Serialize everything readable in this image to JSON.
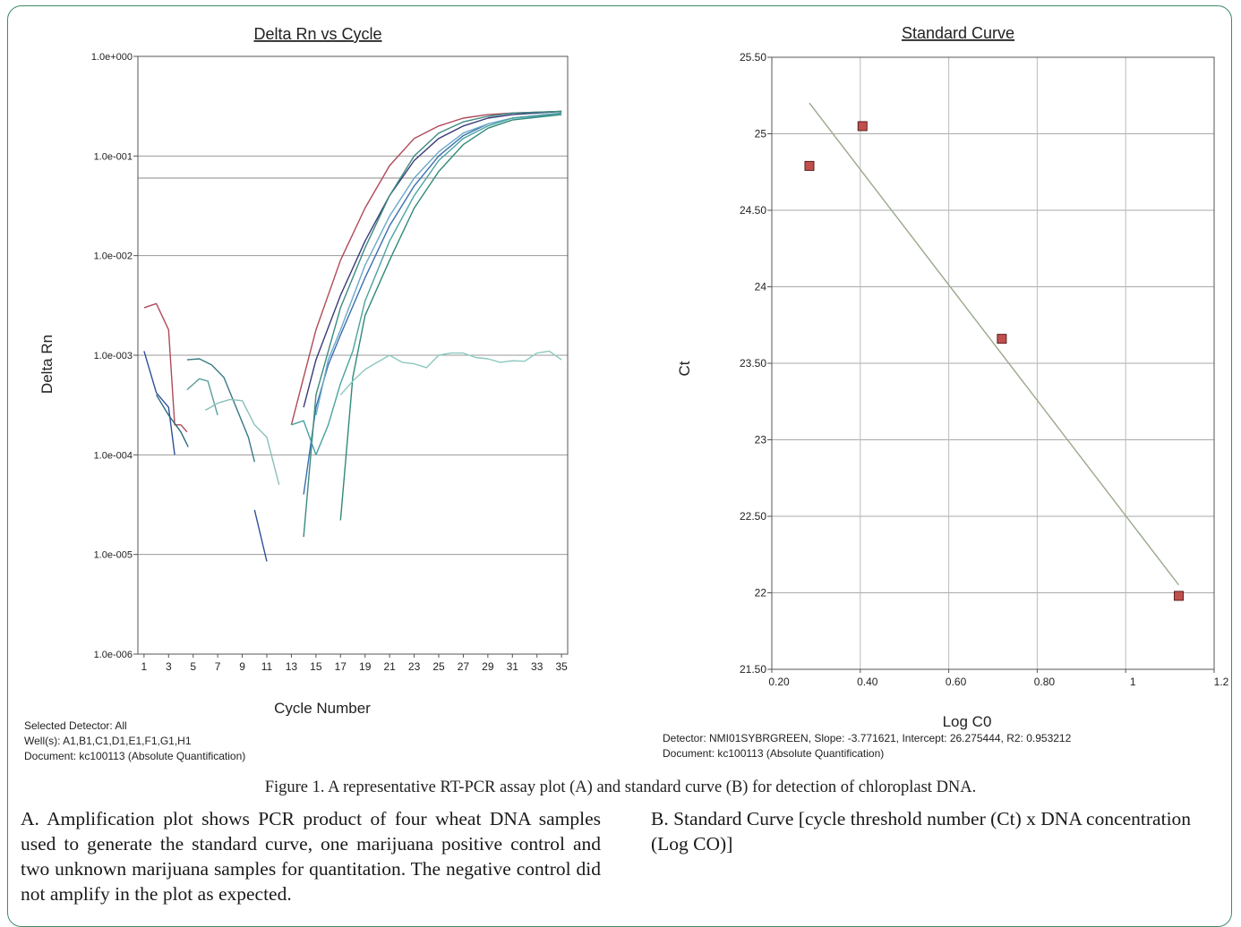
{
  "chart_data": [
    {
      "type": "line",
      "title": "Delta Rn vs Cycle",
      "xlabel": "Cycle Number",
      "ylabel": "Delta Rn",
      "yscale": "log",
      "ylim": [
        1e-06,
        1
      ],
      "xlim": [
        0.5,
        35.5
      ],
      "grid": "horizontal",
      "x_ticks": [
        "1",
        "3",
        "5",
        "7",
        "9",
        "11",
        "13",
        "15",
        "17",
        "19",
        "21",
        "23",
        "25",
        "27",
        "29",
        "31",
        "33",
        "35"
      ],
      "y_ticks": [
        "1.0e-006",
        "1.0e-005",
        "1.0e-004",
        "1.0e-003",
        "1.0e-002",
        "1.0e-001",
        "1.0e+000"
      ],
      "threshold": 0.06,
      "series": [
        {
          "color": "#b04a5a",
          "points": [
            [
              1,
              0.003
            ],
            [
              2,
              0.0033
            ],
            [
              3,
              0.0018
            ],
            [
              3.5,
              0.0002
            ],
            [
              4,
              0.0002
            ],
            [
              4.5,
              0.00017
            ]
          ]
        },
        {
          "color": "#2f4f9a",
          "points": [
            [
              1,
              0.0011
            ],
            [
              2,
              0.00042
            ],
            [
              3,
              0.0003
            ],
            [
              3.5,
              0.0001
            ]
          ]
        },
        {
          "color": "#2a6a7a",
          "points": [
            [
              2,
              0.0004
            ],
            [
              3,
              0.00025
            ],
            [
              4,
              0.00017
            ],
            [
              4.6,
              0.00012
            ]
          ]
        },
        {
          "color": "#3a7a86",
          "points": [
            [
              4.5,
              0.0009
            ],
            [
              5.5,
              0.00092
            ],
            [
              6.5,
              0.0008
            ],
            [
              7.5,
              0.0006
            ],
            [
              8.5,
              0.0003
            ],
            [
              9.5,
              0.00015
            ],
            [
              10,
              8.5e-05
            ]
          ]
        },
        {
          "color": "#5aa09a",
          "points": [
            [
              4.5,
              0.00045
            ],
            [
              5.5,
              0.00058
            ],
            [
              6.2,
              0.00055
            ],
            [
              7,
              0.00025
            ]
          ]
        },
        {
          "color": "#2f4f9a",
          "points": [
            [
              10,
              2.8e-05
            ],
            [
              11,
              8.5e-06
            ]
          ]
        },
        {
          "color": "#8ac0b8",
          "points": [
            [
              6,
              0.00028
            ],
            [
              7,
              0.00033
            ],
            [
              8,
              0.00036
            ],
            [
              9,
              0.00035
            ],
            [
              10,
              0.0002
            ],
            [
              11,
              0.00015
            ],
            [
              12,
              5e-05
            ]
          ]
        },
        {
          "color": "#b04a5a",
          "points": [
            [
              13,
              0.0002
            ],
            [
              14,
              0.0006
            ],
            [
              15,
              0.0018
            ],
            [
              17,
              0.009
            ],
            [
              19,
              0.03
            ],
            [
              21,
              0.08
            ],
            [
              23,
              0.15
            ],
            [
              25,
              0.2
            ],
            [
              27,
              0.24
            ],
            [
              29,
              0.26
            ],
            [
              31,
              0.27
            ],
            [
              35,
              0.28
            ]
          ]
        },
        {
          "color": "#3a3a7a",
          "points": [
            [
              14,
              0.0003
            ],
            [
              15,
              0.0009
            ],
            [
              17,
              0.004
            ],
            [
              19,
              0.014
            ],
            [
              21,
              0.04
            ],
            [
              23,
              0.09
            ],
            [
              25,
              0.15
            ],
            [
              27,
              0.2
            ],
            [
              29,
              0.24
            ],
            [
              31,
              0.26
            ],
            [
              35,
              0.28
            ]
          ]
        },
        {
          "color": "#3c6fb0",
          "points": [
            [
              14,
              4e-05
            ],
            [
              15,
              0.0003
            ],
            [
              16,
              0.0008
            ],
            [
              17,
              0.0016
            ],
            [
              19,
              0.006
            ],
            [
              21,
              0.02
            ],
            [
              23,
              0.05
            ],
            [
              25,
              0.1
            ],
            [
              27,
              0.16
            ],
            [
              29,
              0.21
            ],
            [
              31,
              0.24
            ],
            [
              35,
              0.27
            ]
          ]
        },
        {
          "color": "#6aa8c8",
          "points": [
            [
              15,
              0.00025
            ],
            [
              16,
              0.0009
            ],
            [
              17,
              0.0018
            ],
            [
              19,
              0.008
            ],
            [
              21,
              0.025
            ],
            [
              23,
              0.06
            ],
            [
              25,
              0.11
            ],
            [
              27,
              0.17
            ],
            [
              29,
              0.21
            ],
            [
              31,
              0.24
            ],
            [
              35,
              0.26
            ]
          ]
        },
        {
          "color": "#3a8a80",
          "points": [
            [
              14,
              1.5e-05
            ],
            [
              15,
              0.0004
            ],
            [
              17,
              0.003
            ],
            [
              19,
              0.012
            ],
            [
              21,
              0.04
            ],
            [
              23,
              0.1
            ],
            [
              25,
              0.17
            ],
            [
              27,
              0.22
            ],
            [
              29,
              0.25
            ],
            [
              31,
              0.27
            ],
            [
              35,
              0.28
            ]
          ]
        },
        {
          "color": "#4aa3a0",
          "points": [
            [
              13,
              0.0002
            ],
            [
              14,
              0.00022
            ],
            [
              15,
              0.0001
            ],
            [
              16,
              0.0002
            ],
            [
              17,
              0.00052
            ],
            [
              18,
              0.0011
            ],
            [
              19,
              0.0035
            ],
            [
              21,
              0.014
            ],
            [
              23,
              0.04
            ],
            [
              25,
              0.09
            ],
            [
              27,
              0.15
            ],
            [
              29,
              0.2
            ],
            [
              31,
              0.24
            ],
            [
              35,
              0.27
            ]
          ]
        },
        {
          "color": "#2f8a78",
          "points": [
            [
              17,
              2.2e-05
            ],
            [
              18,
              0.0006
            ],
            [
              19,
              0.0025
            ],
            [
              21,
              0.009
            ],
            [
              23,
              0.03
            ],
            [
              25,
              0.07
            ],
            [
              27,
              0.13
            ],
            [
              29,
              0.19
            ],
            [
              31,
              0.23
            ],
            [
              35,
              0.26
            ]
          ]
        },
        {
          "color": "#8cc8c0",
          "points": [
            [
              17,
              0.0004
            ],
            [
              18,
              0.00055
            ],
            [
              19,
              0.00072
            ],
            [
              20,
              0.00085
            ],
            [
              21,
              0.001
            ],
            [
              22,
              0.00085
            ],
            [
              23,
              0.00082
            ],
            [
              24,
              0.00075
            ],
            [
              25,
              0.001
            ],
            [
              26,
              0.00105
            ],
            [
              27,
              0.00105
            ],
            [
              28,
              0.00095
            ],
            [
              29,
              0.00092
            ],
            [
              30,
              0.00085
            ],
            [
              31,
              0.00088
            ],
            [
              32,
              0.00087
            ],
            [
              33,
              0.00105
            ],
            [
              34,
              0.0011
            ],
            [
              35,
              0.0009
            ]
          ]
        }
      ]
    },
    {
      "type": "scatter",
      "title": "Standard Curve",
      "xlabel": "Log C0",
      "ylabel": "Ct",
      "xlim": [
        0.2,
        1.2
      ],
      "ylim": [
        21.5,
        25.5
      ],
      "grid": "both",
      "x_ticks": [
        "0.20",
        "0.40",
        "0.60",
        "0.80",
        "1",
        "1.2"
      ],
      "y_ticks": [
        "21.50",
        "22",
        "22.50",
        "23",
        "23.50",
        "24",
        "24.50",
        "25",
        "25.50"
      ],
      "points": [
        [
          0.285,
          24.79
        ],
        [
          0.405,
          25.05
        ],
        [
          0.72,
          23.66
        ],
        [
          1.12,
          21.98
        ]
      ],
      "point_color": "#c0504d",
      "fit_line": {
        "slope": -3.771621,
        "intercept": 26.275444,
        "x_from": 0.285,
        "x_to": 1.12
      },
      "fit_color": "#9aa88a"
    }
  ],
  "left_meta": {
    "line1": "Selected Detector: All",
    "line2": "Well(s): A1,B1,C1,D1,E1,F1,G1,H1",
    "line3": "Document: kc100113 (Absolute Quantification)"
  },
  "right_meta": {
    "line1": "Detector: NMI01SYBRGREEN, Slope:  -3.771621, Intercept:  26.275444, R2:  0.953212",
    "line2": "Document: kc100113 (Absolute Quantification)"
  },
  "caption": "Figure 1.  A representative RT-PCR assay plot (A) and standard curve (B) for detection of chloroplast DNA.",
  "para_a": "A. Amplification plot shows PCR product of four wheat DNA samples used to generate the standard curve, one marijuana positive control and two unknown marijuana samples for quantitation.  The negative control did not amplify in the plot as expected.",
  "para_b": "B. Standard Curve [cycle threshold number (Ct) x DNA concentration (Log CO)]"
}
